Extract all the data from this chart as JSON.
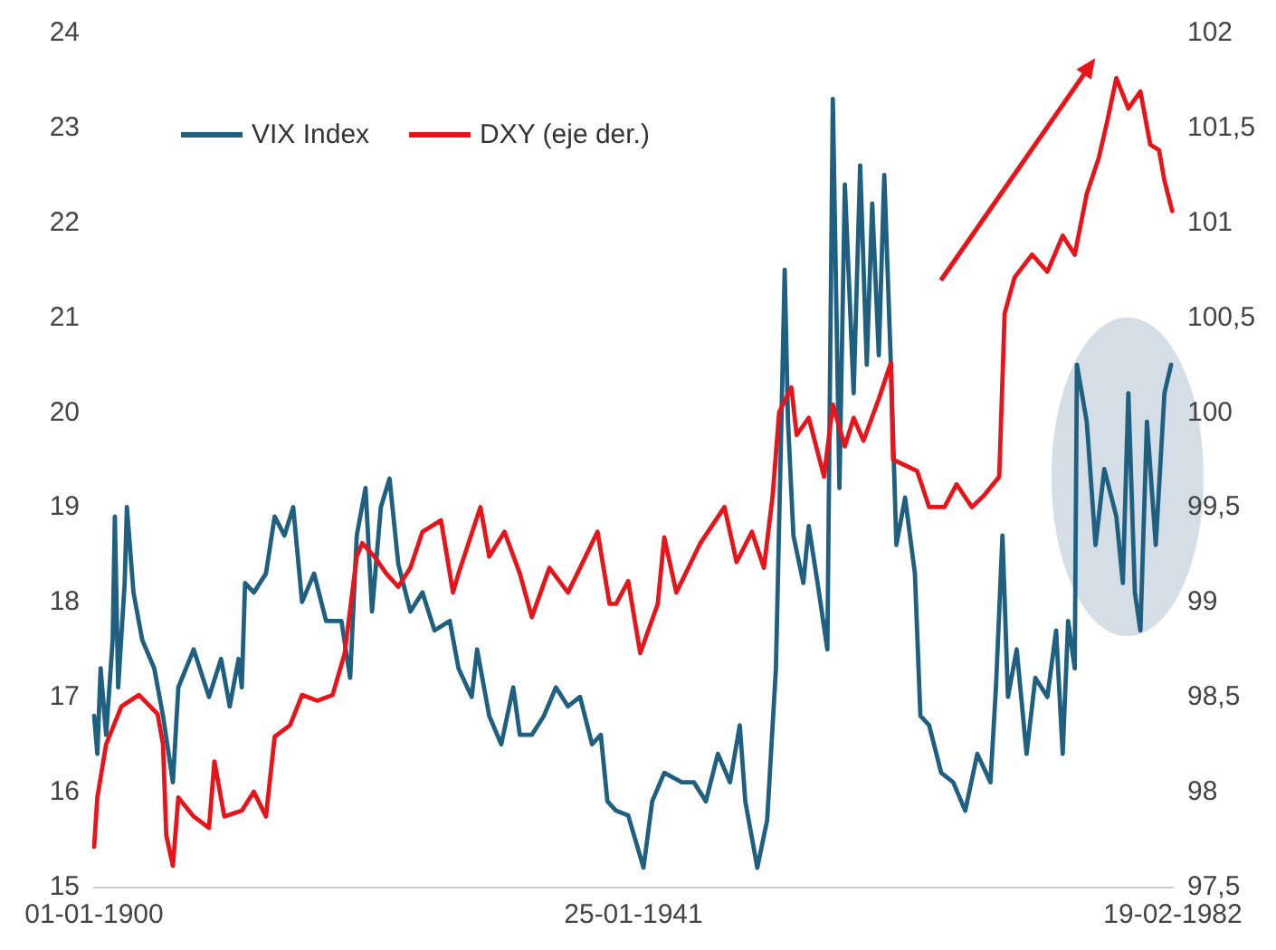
{
  "chart_data": {
    "type": "line",
    "xlim": [
      "1900-01-01",
      "1982-02-19"
    ],
    "xticks": [
      {
        "value": "1900-01-01",
        "label": "01-01-1900"
      },
      {
        "value": "1941-01-25",
        "label": "25-01-1941"
      },
      {
        "value": "1982-02-19",
        "label": "19-02-1982"
      }
    ],
    "ylim": [
      15,
      24
    ],
    "yticks": [
      15,
      16,
      17,
      18,
      19,
      20,
      21,
      22,
      23,
      24
    ],
    "y2lim": [
      97.5,
      102
    ],
    "y2ticks": [
      {
        "value": 97.5,
        "label": "97,5"
      },
      98,
      {
        "value": 98.5,
        "label": "98,5"
      },
      99,
      {
        "value": 99.5,
        "label": "99,5"
      },
      100,
      {
        "value": 100.5,
        "label": "100,5"
      },
      101,
      {
        "value": 101.5,
        "label": "101,5"
      },
      102
    ],
    "grid": false,
    "legend": "top left",
    "marker": "none",
    "line_style": "solid",
    "series": [
      {
        "name": "VIX Index",
        "color": "#1f5f80",
        "x": [
          "1900-01",
          "1900-04",
          "1900-07",
          "1900-12",
          "1901-06",
          "1901-08",
          "1901-11",
          "1902-05",
          "1902-07",
          "1903-01",
          "1903-09",
          "1904-08",
          "1905-04",
          "1906-01",
          "1906-06",
          "1907-08",
          "1908-10",
          "1909-09",
          "1910-05",
          "1911-01",
          "1911-04",
          "1911-07",
          "1912-03",
          "1913-02",
          "1913-10",
          "1914-07",
          "1915-03",
          "1915-11",
          "1916-10",
          "1917-09",
          "1918-11",
          "1919-07",
          "1920-01",
          "1920-09",
          "1921-03",
          "1921-11",
          "1922-07",
          "1923-03",
          "1924-02",
          "1925-01",
          "1925-12",
          "1927-02",
          "1927-10",
          "1928-10",
          "1929-03",
          "1930-02",
          "1931-01",
          "1931-12",
          "1932-06",
          "1933-05",
          "1934-04",
          "1935-03",
          "1936-02",
          "1937-01",
          "1937-12",
          "1938-08",
          "1939-02",
          "1939-10",
          "1940-09",
          "1941-11",
          "1942-07",
          "1943-06",
          "1944-10",
          "1945-09",
          "1946-08",
          "1947-07",
          "1948-06",
          "1949-03",
          "1949-08",
          "1950-07",
          "1951-04",
          "1951-12",
          "1952-05",
          "1952-08",
          "1952-11",
          "1953-04",
          "1954-01",
          "1954-06",
          "1955-02",
          "1955-11",
          "1956-01",
          "1956-04",
          "1956-10",
          "1957-03",
          "1957-11",
          "1958-05",
          "1958-11",
          "1959-04",
          "1959-10",
          "1960-03",
          "1960-09",
          "1961-02",
          "1961-10",
          "1962-07",
          "1962-12",
          "1963-08",
          "1964-07",
          "1965-06",
          "1966-05",
          "1967-04",
          "1968-04",
          "1968-09",
          "1969-03",
          "1969-08",
          "1970-04",
          "1971-01",
          "1971-09",
          "1972-08",
          "1973-04",
          "1973-10",
          "1974-03",
          "1974-09",
          "1974-11",
          "1975-08",
          "1976-04",
          "1976-12",
          "1977-11",
          "1978-05",
          "1978-10",
          "1979-04",
          "1979-09",
          "1980-03",
          "1980-11",
          "1981-07",
          "1982-01"
        ],
        "values": [
          16.8,
          16.4,
          17.3,
          16.6,
          17.6,
          18.9,
          17.1,
          18.2,
          19.0,
          18.1,
          17.6,
          17.3,
          16.8,
          16.1,
          17.1,
          17.5,
          17.0,
          17.4,
          16.9,
          17.4,
          17.1,
          18.2,
          18.1,
          18.3,
          18.9,
          18.7,
          19.0,
          18.0,
          18.3,
          17.8,
          17.8,
          17.2,
          18.7,
          19.2,
          17.9,
          19.0,
          19.3,
          18.4,
          17.9,
          18.1,
          17.7,
          17.8,
          17.3,
          17.0,
          17.5,
          16.8,
          16.5,
          17.1,
          16.6,
          16.6,
          16.8,
          17.1,
          16.9,
          17.0,
          16.5,
          16.6,
          15.9,
          15.8,
          15.75,
          15.2,
          15.9,
          16.2,
          16.1,
          16.1,
          15.9,
          16.4,
          16.1,
          16.7,
          15.9,
          15.2,
          15.7,
          17.3,
          19.9,
          21.5,
          19.9,
          18.7,
          18.2,
          18.8,
          18.2,
          17.5,
          19.9,
          23.3,
          19.2,
          22.4,
          20.2,
          22.6,
          20.5,
          22.2,
          20.6,
          22.5,
          20.5,
          18.6,
          19.1,
          18.3,
          16.8,
          16.7,
          16.2,
          16.1,
          15.8,
          16.4,
          16.1,
          17.1,
          18.7,
          17.0,
          17.5,
          16.4,
          17.2,
          17.0,
          17.7,
          16.4,
          17.8,
          17.3,
          20.5,
          19.9,
          18.6,
          19.4,
          18.9,
          18.2,
          20.2,
          18.1,
          17.7,
          19.9,
          18.6,
          20.2,
          20.5
        ]
      },
      {
        "name": "DXY (eje der.)",
        "color": "#e8141a",
        "axis": "y2",
        "x": [
          "1900-01",
          "1900-04",
          "1900-12",
          "1902-02",
          "1903-06",
          "1904-11",
          "1905-04",
          "1905-07",
          "1906-01",
          "1906-06",
          "1907-08",
          "1908-10",
          "1909-03",
          "1909-12",
          "1911-04",
          "1912-03",
          "1913-02",
          "1913-10",
          "1914-12",
          "1915-11",
          "1917-01",
          "1918-03",
          "1919-02",
          "1920-01",
          "1920-06",
          "1921-05",
          "1922-04",
          "1923-03",
          "1924-02",
          "1925-01",
          "1926-06",
          "1927-05",
          "1927-10",
          "1929-06",
          "1930-02",
          "1931-04",
          "1932-06",
          "1933-05",
          "1934-09",
          "1936-02",
          "1937-01",
          "1938-05",
          "1939-04",
          "1939-10",
          "1940-09",
          "1941-08",
          "1942-12",
          "1943-06",
          "1944-05",
          "1946-03",
          "1948-01",
          "1948-12",
          "1950-02",
          "1951-01",
          "1951-09",
          "1952-03",
          "1953-02",
          "1953-07",
          "1954-06",
          "1955-08",
          "1956-04",
          "1957-03",
          "1957-11",
          "1958-08",
          "1959-10",
          "1960-09",
          "1960-11",
          "1961-10",
          "1962-09",
          "1963-08",
          "1964-10",
          "1965-09",
          "1966-11",
          "1967-10",
          "1968-12",
          "1969-05",
          "1970-02",
          "1971-06",
          "1972-08",
          "1973-10",
          "1974-09",
          "1975-08",
          "1976-07",
          "1977-03",
          "1977-11",
          "1978-10",
          "1979-09",
          "1980-06",
          "1981-02",
          "1981-07",
          "1982-02"
        ],
        "values": [
          97.71,
          97.97,
          98.25,
          98.45,
          98.51,
          98.41,
          98.25,
          97.77,
          97.61,
          97.97,
          97.87,
          97.81,
          98.16,
          97.87,
          97.9,
          98.0,
          97.87,
          98.29,
          98.35,
          98.51,
          98.48,
          98.51,
          98.73,
          99.24,
          99.31,
          99.24,
          99.15,
          99.08,
          99.18,
          99.37,
          99.43,
          99.05,
          99.15,
          99.5,
          99.24,
          99.37,
          99.15,
          98.92,
          99.18,
          99.05,
          99.18,
          99.37,
          98.99,
          98.99,
          99.11,
          98.73,
          98.99,
          99.34,
          99.05,
          99.31,
          99.5,
          99.21,
          99.37,
          99.18,
          99.56,
          100.0,
          100.13,
          99.88,
          99.97,
          99.66,
          100.04,
          99.82,
          99.97,
          99.85,
          100.07,
          100.26,
          99.75,
          99.72,
          99.69,
          99.5,
          99.5,
          99.62,
          99.5,
          99.56,
          99.66,
          100.52,
          100.71,
          100.83,
          100.74,
          100.93,
          100.83,
          101.15,
          101.34,
          101.54,
          101.76,
          101.6,
          101.69,
          101.41,
          101.38,
          101.22,
          101.06
        ]
      }
    ]
  }
}
